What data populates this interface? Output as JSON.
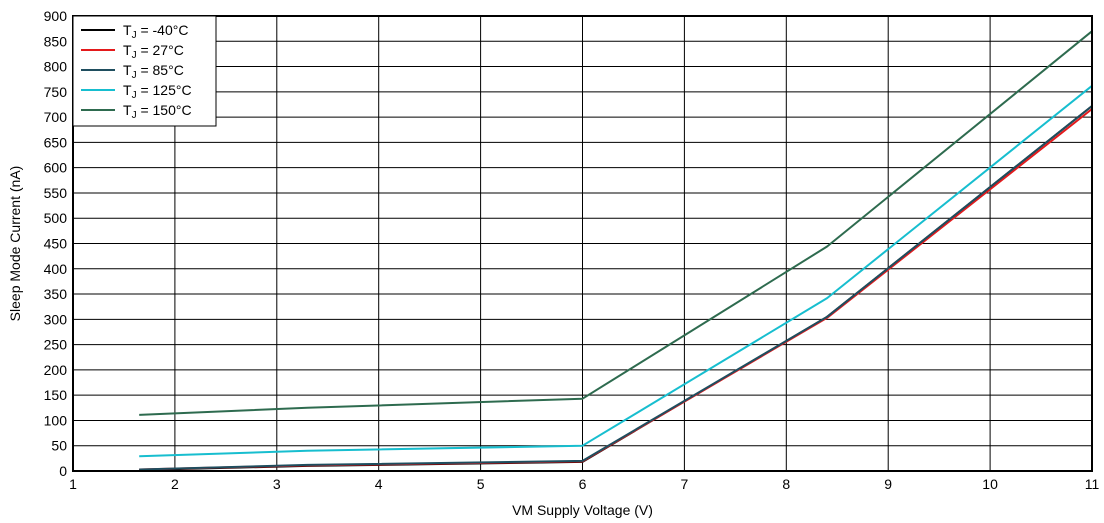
{
  "chart_data": {
    "type": "line",
    "xlabel": "VM Supply Voltage (V)",
    "ylabel": "Sleep Mode Current (nA)",
    "xlim": [
      1,
      11
    ],
    "ylim": [
      0,
      900
    ],
    "xticks": [
      1,
      2,
      3,
      4,
      5,
      6,
      7,
      8,
      9,
      10,
      11
    ],
    "yticks": [
      0,
      50,
      100,
      150,
      200,
      250,
      300,
      350,
      400,
      450,
      500,
      550,
      600,
      650,
      700,
      750,
      800,
      850,
      900
    ],
    "grid": true,
    "legend_position": "top-left",
    "series": [
      {
        "name": "T_J = -40°C",
        "label_main": "T",
        "label_sub": "J",
        "label_rest": " = -40°C",
        "color": "#000000",
        "x": [
          1.65,
          3.3,
          6.0,
          8.4,
          11.0
        ],
        "y": [
          2,
          10,
          18,
          305,
          722
        ]
      },
      {
        "name": "T_J = 27°C",
        "label_main": "T",
        "label_sub": "J",
        "label_rest": " = 27°C",
        "color": "#e31a1c",
        "x": [
          1.65,
          3.3,
          6.0,
          8.4,
          11.0
        ],
        "y": [
          3,
          11,
          19,
          303,
          716
        ]
      },
      {
        "name": "T_J = 85°C",
        "label_main": "T",
        "label_sub": "J",
        "label_rest": " = 85°C",
        "color": "#1f4e5f",
        "x": [
          1.65,
          3.3,
          6.0,
          8.4,
          11.0
        ],
        "y": [
          3,
          12,
          20,
          305,
          722
        ]
      },
      {
        "name": "T_J = 125°C",
        "label_main": "T",
        "label_sub": "J",
        "label_rest": " = 125°C",
        "color": "#17becf",
        "x": [
          1.65,
          3.3,
          6.0,
          8.4,
          11.0
        ],
        "y": [
          29,
          40,
          50,
          342,
          762
        ]
      },
      {
        "name": "T_J = 150°C",
        "label_main": "T",
        "label_sub": "J",
        "label_rest": " = 150°C",
        "color": "#2e6b4f",
        "x": [
          1.65,
          3.3,
          6.0,
          8.4,
          11.0
        ],
        "y": [
          111,
          125,
          143,
          444,
          870
        ]
      }
    ]
  }
}
